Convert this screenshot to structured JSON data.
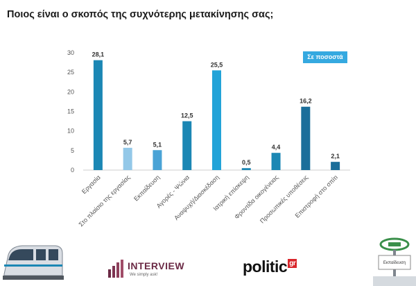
{
  "header": {
    "title": "Ποιος είναι ο σκοπός της συχνότερης μετακίνησης σας;"
  },
  "badge": {
    "label": "Σε ποσοστά"
  },
  "branding": {
    "interview": {
      "name": "INTERVIEW",
      "tagline": "We simply ask!"
    },
    "politic": {
      "name": "politic",
      "suffix": "gr"
    },
    "station_sign": "Εκπαίδευση"
  },
  "chart_data": {
    "type": "bar",
    "title": "Ποιος είναι ο σκοπός της συχνότερης μετακίνησης σας;",
    "categories": [
      "Εργασία",
      "Στο πλαίσιο της εργασίας",
      "Εκπαίδευση",
      "Αγορές - Ψώνια",
      "Αναψυχή/Διασκέδαση",
      "Ιατρική επίσκεψη",
      "Φροντίδα οικογένειας",
      "Προσωπικές υποθέσεις",
      "Επιστροφή στο σπίτι"
    ],
    "values": [
      28.1,
      5.7,
      5.1,
      12.5,
      25.5,
      0.5,
      4.4,
      16.2,
      2.1
    ],
    "value_labels": [
      "28,1",
      "5,7",
      "5,1",
      "12,5",
      "25,5",
      "0,5",
      "4,4",
      "16,2",
      "2,1"
    ],
    "colors": [
      "#1b87b4",
      "#93c8e8",
      "#4aa3d6",
      "#1b87b4",
      "#22a3d8",
      "#1b87b4",
      "#1b87b4",
      "#1b6e9a",
      "#1b6e9a"
    ],
    "ylim": [
      0,
      30
    ],
    "yticks": [
      0,
      5,
      10,
      15,
      20,
      25,
      30
    ],
    "ylabel": "",
    "xlabel": "",
    "grid": false
  }
}
